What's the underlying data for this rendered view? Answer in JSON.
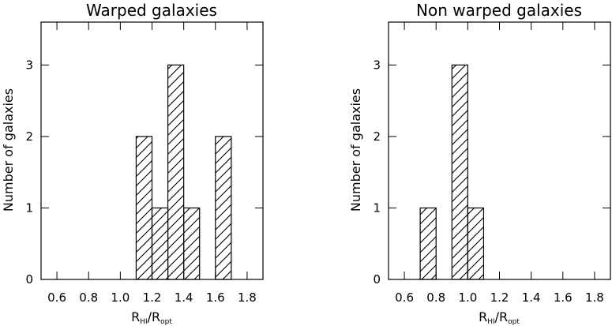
{
  "chart_data": [
    {
      "type": "bar",
      "title": "Warped galaxies",
      "xlabel": {
        "main": "R",
        "sub1": "HI",
        "slash": "/",
        "main2": "R",
        "sub2": "opt"
      },
      "ylabel": "Number of galaxies",
      "xlim": [
        0.5,
        1.9
      ],
      "ylim": [
        0,
        3.6
      ],
      "xticks": [
        "0.6",
        "0.8",
        "1.0",
        "1.2",
        "1.4",
        "1.6",
        "1.8"
      ],
      "yticks": [
        "0",
        "1",
        "2",
        "3"
      ],
      "bins": [
        {
          "x0": 1.1,
          "x1": 1.2,
          "value": 2
        },
        {
          "x0": 1.2,
          "x1": 1.3,
          "value": 1
        },
        {
          "x0": 1.3,
          "x1": 1.4,
          "value": 3
        },
        {
          "x0": 1.4,
          "x1": 1.5,
          "value": 1
        },
        {
          "x0": 1.6,
          "x1": 1.7,
          "value": 2
        }
      ],
      "hatch": "diagonal"
    },
    {
      "type": "bar",
      "title": "Non warped galaxies",
      "xlabel": {
        "main": "R",
        "sub1": "HI",
        "slash": "/",
        "main2": "R",
        "sub2": "opt"
      },
      "ylabel": "Number of galaxies",
      "xlim": [
        0.5,
        1.9
      ],
      "ylim": [
        0,
        3.6
      ],
      "xticks": [
        "0.6",
        "0.8",
        "1.0",
        "1.2",
        "1.4",
        "1.6",
        "1.8"
      ],
      "yticks": [
        "0",
        "1",
        "2",
        "3"
      ],
      "bins": [
        {
          "x0": 0.7,
          "x1": 0.8,
          "value": 1
        },
        {
          "x0": 0.9,
          "x1": 1.0,
          "value": 3
        },
        {
          "x0": 1.0,
          "x1": 1.1,
          "value": 1
        }
      ],
      "hatch": "diagonal"
    }
  ]
}
